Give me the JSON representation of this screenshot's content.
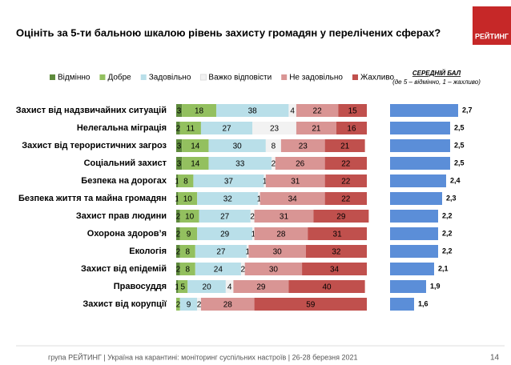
{
  "title": "Оцініть за 5-ти бальною шкалою рівень захисту громадян у перелічених сферах?",
  "logo": "РЕЙТИНГ",
  "footer": {
    "text": "група РЕЙТИНГ | Україна на карантині: моніторинг суспільних настроїв | 26-28 березня 2021",
    "page": "14"
  },
  "chart_data": [
    {
      "type": "stacked_bar",
      "categories": [
        "Захист від надзвичайних ситуацій",
        "Нелегальна міграція",
        "Захист від терористичних загроз",
        "Соціальний захист",
        "Безпека на дорогах",
        "Безпека життя та майна громадян",
        "Захист прав людини",
        "Охорона здоров’я",
        "Екологія",
        "Захист від епідемій",
        "Правосуддя",
        "Захист від корупції"
      ],
      "series": [
        {
          "name": "Відмінно",
          "color": "#5e8a3c",
          "values": [
            3,
            2,
            3,
            3,
            1,
            1,
            2,
            2,
            2,
            2,
            1,
            0
          ]
        },
        {
          "name": "Добре",
          "color": "#93c05f",
          "values": [
            18,
            11,
            14,
            14,
            8,
            10,
            10,
            9,
            8,
            8,
            5,
            2
          ]
        },
        {
          "name": "Задовільно",
          "color": "#b9dfe9",
          "values": [
            38,
            27,
            30,
            33,
            37,
            32,
            27,
            29,
            27,
            24,
            20,
            9
          ]
        },
        {
          "name": "Важко відповісти",
          "color": "#f2f2f2",
          "values": [
            4,
            23,
            8,
            2,
            1,
            1,
            2,
            1,
            1,
            2,
            4,
            2
          ]
        },
        {
          "name": "Не задовільно",
          "color": "#d99594",
          "values": [
            22,
            21,
            23,
            26,
            31,
            34,
            31,
            28,
            30,
            30,
            29,
            28
          ]
        },
        {
          "name": "Жахливо",
          "color": "#c0504d",
          "values": [
            15,
            16,
            21,
            22,
            22,
            22,
            29,
            31,
            32,
            34,
            40,
            59
          ]
        }
      ],
      "xlim": [
        0,
        100
      ]
    },
    {
      "type": "bar",
      "title": "СЕРЕДНІЙ БАЛ",
      "subtitle": "(де 5 – відмінно, 1 – жахливо)",
      "color": "#5b8ed8",
      "values": [
        2.7,
        2.5,
        2.5,
        2.5,
        2.4,
        2.3,
        2.2,
        2.2,
        2.2,
        2.1,
        1.9,
        1.6
      ],
      "value_labels": [
        "2,7",
        "2,5",
        "2,5",
        "2,5",
        "2,4",
        "2,3",
        "2,2",
        "2,2",
        "2,2",
        "2,1",
        "1,9",
        "1,6"
      ],
      "xlim": [
        1,
        3
      ]
    }
  ]
}
